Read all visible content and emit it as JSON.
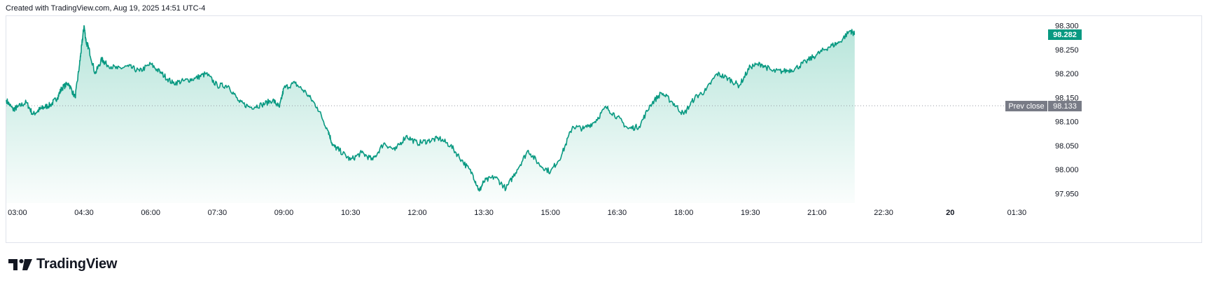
{
  "header": {
    "text": "Created with TradingView.com, Aug 19, 2025 14:51 UTC-4"
  },
  "brand": {
    "name": "TradingView",
    "icon": "tradingview-logo-icon"
  },
  "colors": {
    "line": "#089981",
    "fill_top": "#9fdcce",
    "fill_bottom": "#ffffff",
    "prev_close_label_bg": "#787b86",
    "last_price_bg": "#089981",
    "grid": "#e0e3eb"
  },
  "chart_data": {
    "type": "area",
    "x_ticks": [
      "03:00",
      "04:30",
      "06:00",
      "07:30",
      "09:00",
      "10:30",
      "12:00",
      "13:30",
      "15:00",
      "16:30",
      "18:00",
      "19:30",
      "21:00",
      "22:30",
      "20",
      "01:30"
    ],
    "x_tick_bold": [
      "20"
    ],
    "y_ticks": [
      "98.300",
      "98.250",
      "98.200",
      "98.150",
      "98.100",
      "98.050",
      "98.000",
      "97.950"
    ],
    "ylim": [
      97.93,
      98.32
    ],
    "x_range_hours": [
      2.75,
      26.25
    ],
    "last_price": {
      "label": "98.282",
      "value": 98.282
    },
    "prev_close": {
      "label": "Prev close",
      "value_label": "98.133",
      "value": 98.133
    },
    "series": [
      {
        "x": [
          2.75,
          2.9,
          3.0,
          3.2,
          3.35,
          3.5,
          3.6,
          3.75,
          3.9,
          4.0,
          4.15,
          4.3,
          4.4,
          4.45,
          4.5,
          4.55,
          4.6,
          4.75,
          4.9,
          5.0,
          5.25,
          5.5,
          5.75,
          6.0,
          6.25,
          6.5,
          6.75,
          7.0,
          7.25,
          7.5,
          7.75,
          8.0,
          8.25,
          8.5,
          8.75,
          8.9,
          9.0,
          9.25,
          9.5,
          9.75,
          10.0,
          10.1,
          10.25,
          10.5,
          10.75,
          11.0,
          11.25,
          11.5,
          11.75,
          12.0,
          12.25,
          12.5,
          12.75,
          13.0,
          13.25,
          13.4,
          13.5,
          13.75,
          14.0,
          14.25,
          14.5,
          14.75,
          15.0,
          15.25,
          15.5,
          15.75,
          16.0,
          16.25,
          16.5,
          16.75,
          17.0,
          17.25,
          17.5,
          17.75,
          18.0,
          18.25,
          18.5,
          18.75,
          19.0,
          19.25,
          19.5,
          19.75,
          20.0,
          20.25,
          20.5,
          20.75,
          21.0,
          21.25,
          21.5,
          21.75,
          21.85
        ],
        "y": [
          98.145,
          98.125,
          98.13,
          98.14,
          98.115,
          98.125,
          98.13,
          98.135,
          98.15,
          98.17,
          98.18,
          98.15,
          98.22,
          98.26,
          98.3,
          98.265,
          98.255,
          98.2,
          98.23,
          98.22,
          98.21,
          98.215,
          98.205,
          98.22,
          98.2,
          98.18,
          98.185,
          98.19,
          98.2,
          98.175,
          98.175,
          98.14,
          98.13,
          98.135,
          98.145,
          98.13,
          98.17,
          98.18,
          98.16,
          98.13,
          98.08,
          98.05,
          98.04,
          98.02,
          98.035,
          98.02,
          98.055,
          98.04,
          98.07,
          98.055,
          98.06,
          98.065,
          98.05,
          98.02,
          97.99,
          97.955,
          97.975,
          97.985,
          97.96,
          98.0,
          98.04,
          98.01,
          97.995,
          98.03,
          98.09,
          98.085,
          98.1,
          98.13,
          98.11,
          98.085,
          98.09,
          98.135,
          98.16,
          98.14,
          98.115,
          98.15,
          98.165,
          98.2,
          98.19,
          98.175,
          98.215,
          98.22,
          98.205,
          98.205,
          98.21,
          98.225,
          98.24,
          98.255,
          98.265,
          98.29,
          98.282
        ]
      }
    ]
  }
}
